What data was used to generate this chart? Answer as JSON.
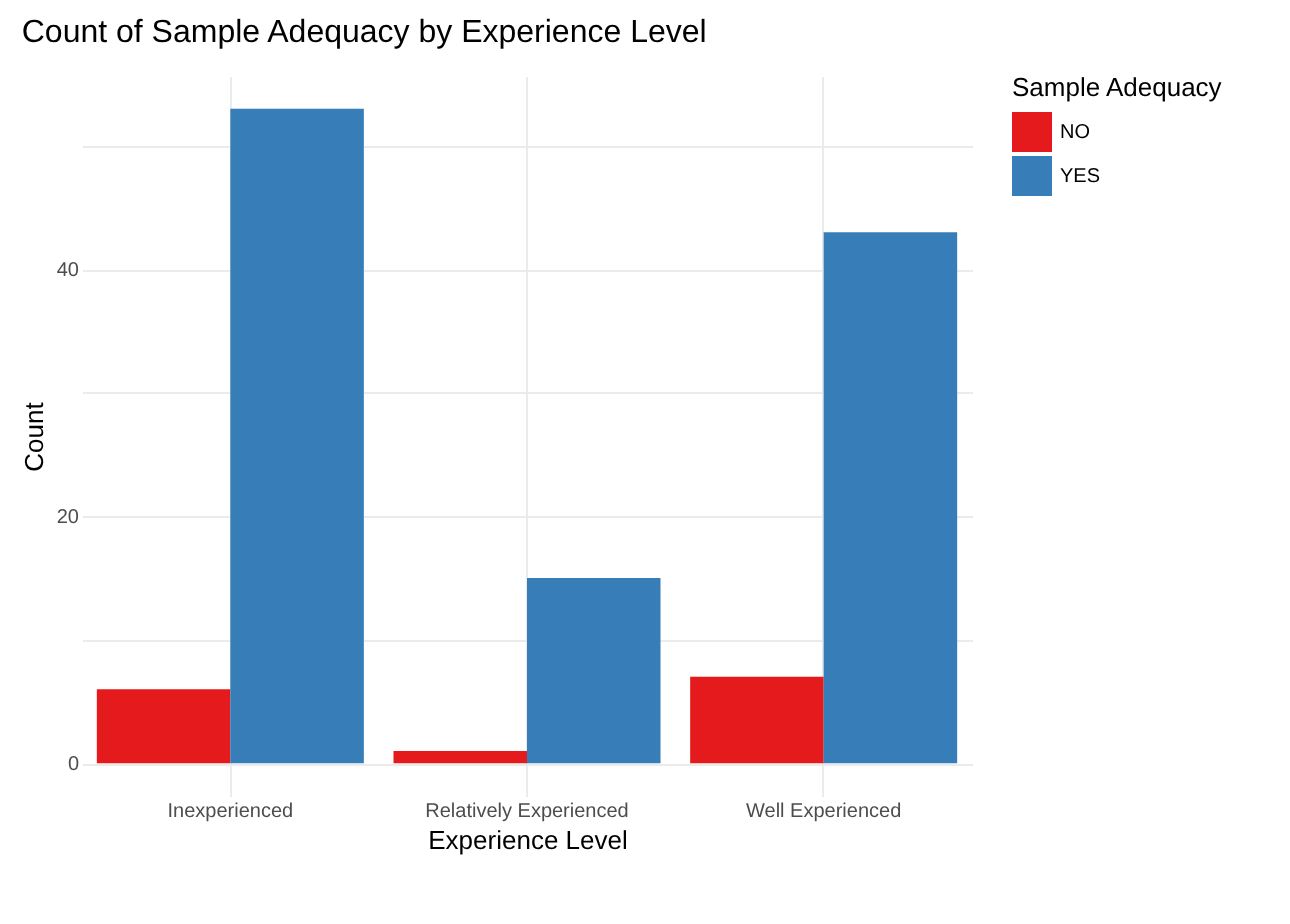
{
  "chart_data": {
    "type": "bar",
    "title": "Count of Sample Adequacy by Experience Level",
    "xlabel": "Experience Level",
    "ylabel": "Count",
    "legend_title": "Sample Adequacy",
    "categories": [
      "Inexperienced",
      "Relatively Experienced",
      "Well Experienced"
    ],
    "series": [
      {
        "name": "NO",
        "color": "#e41a1c",
        "values": [
          6,
          1,
          7
        ]
      },
      {
        "name": "YES",
        "color": "#377eb8",
        "values": [
          53,
          15,
          43
        ]
      }
    ],
    "ylim": [
      -2.65,
      55.65
    ],
    "yticks": [
      0,
      {
        "value": 10,
        "label": null
      },
      20,
      {
        "value": 30,
        "label": null
      },
      40,
      {
        "value": 50,
        "label": null
      }
    ],
    "grid": true,
    "legend": "right"
  }
}
